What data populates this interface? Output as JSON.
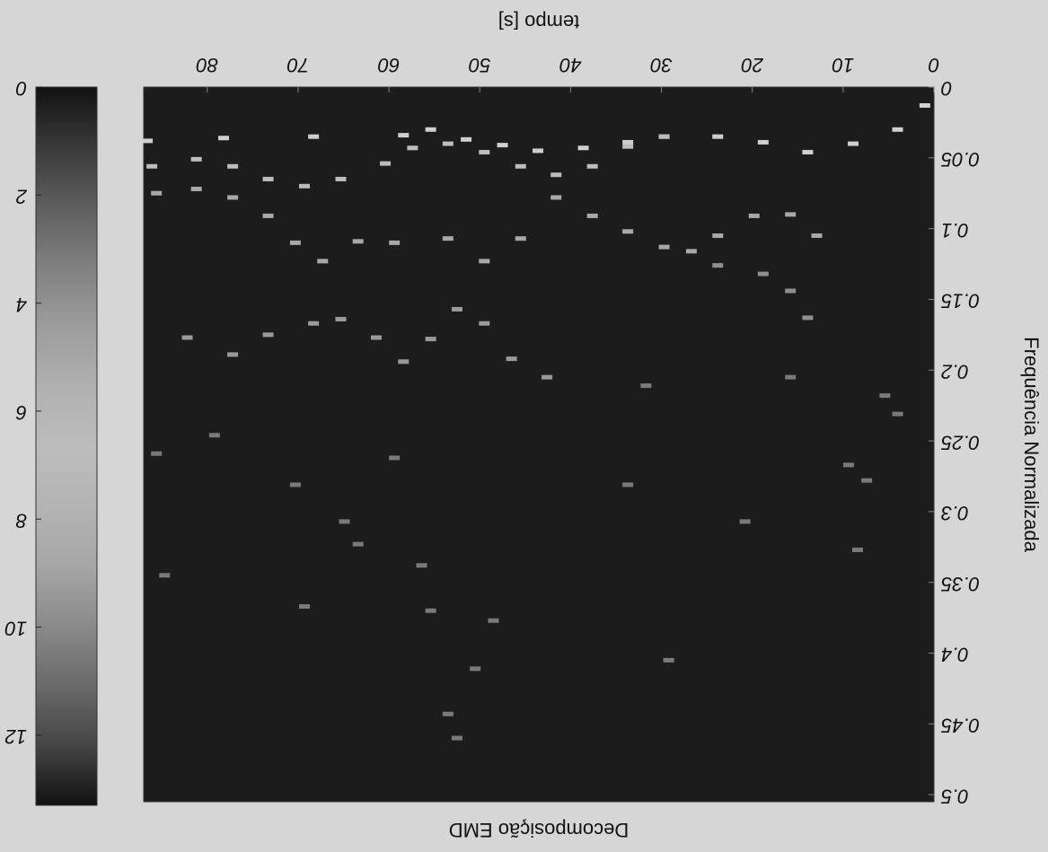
{
  "chart_data": {
    "type": "scatter",
    "title": "Decomposição EMD",
    "x_label": "tempo [s]",
    "y_label": "Frequência Normalizada",
    "xlim": [
      0,
      87
    ],
    "xticks": [
      0,
      10,
      20,
      30,
      40,
      50,
      60,
      70,
      80
    ],
    "ylim": [
      0,
      0.505
    ],
    "yticks": [
      0,
      0.05,
      0.1,
      0.15,
      0.2,
      0.25,
      0.3,
      0.35,
      0.4,
      0.45,
      0.5
    ],
    "rotated_180": true,
    "background": "#1c1c1c",
    "series": [
      {
        "color": "#cfcfcf",
        "x": [
          86.6,
          78.2,
          68.3,
          58.4,
          55.4,
          51.5,
          47.5,
          43.6,
          38.6,
          33.7,
          29.7,
          23.8,
          18.8,
          13.9,
          8.9,
          4.0,
          1.0
        ],
        "y": [
          0.038,
          0.036,
          0.035,
          0.034,
          0.03,
          0.037,
          0.041,
          0.045,
          0.043,
          0.039,
          0.035,
          0.035,
          0.039,
          0.046,
          0.04,
          0.03,
          0.013
        ]
      },
      {
        "color": "#bdbdbd",
        "x": [
          86.1,
          81.2,
          77.2,
          73.3,
          69.3,
          65.3,
          60.4,
          57.4,
          53.5,
          49.5,
          45.5,
          41.6,
          37.6,
          33.7,
          29.7
        ],
        "y": [
          0.056,
          0.051,
          0.056,
          0.065,
          0.07,
          0.065,
          0.054,
          0.043,
          0.04,
          0.046,
          0.056,
          0.062,
          0.056,
          0.042,
          0.035
        ]
      },
      {
        "color": "#a8a8a8",
        "x": [
          85.6,
          81.2,
          77.2,
          73.3,
          70.3,
          67.3,
          63.4,
          59.4,
          53.5,
          49.5,
          45.5,
          41.6,
          37.6,
          33.7,
          29.7,
          26.7,
          23.8,
          19.8,
          15.8,
          12.9
        ],
        "y": [
          0.075,
          0.072,
          0.078,
          0.091,
          0.11,
          0.123,
          0.109,
          0.11,
          0.107,
          0.123,
          0.107,
          0.078,
          0.091,
          0.102,
          0.113,
          0.116,
          0.105,
          0.091,
          0.09,
          0.105
        ]
      },
      {
        "color": "#8f8f8f",
        "x": [
          23.8,
          18.8,
          15.8,
          13.9
        ],
        "y": [
          0.126,
          0.132,
          0.144,
          0.163
        ]
      },
      {
        "color": "#9a9a9a",
        "x": [
          82.2,
          77.2,
          73.3,
          68.3,
          65.3,
          61.4,
          58.4,
          55.4,
          52.5,
          49.5,
          46.5,
          42.6
        ],
        "y": [
          0.177,
          0.189,
          0.175,
          0.167,
          0.164,
          0.177,
          0.194,
          0.178,
          0.157,
          0.167,
          0.192,
          0.205
        ]
      },
      {
        "color": "#7a7a7a",
        "x": [
          84.7,
          85.6,
          69.3,
          64.9,
          63.4,
          59.4,
          56.4,
          55.4,
          53.5,
          52.5,
          50.5,
          48.5,
          33.7,
          29.2,
          9.4,
          7.4,
          8.4,
          5.4,
          4.0,
          15.8,
          31.7,
          20.8,
          79.2,
          70.3
        ],
        "y": [
          0.345,
          0.259,
          0.367,
          0.307,
          0.323,
          0.262,
          0.338,
          0.37,
          0.443,
          0.46,
          0.411,
          0.377,
          0.281,
          0.405,
          0.267,
          0.278,
          0.327,
          0.218,
          0.231,
          0.205,
          0.211,
          0.307,
          0.246,
          0.281
        ]
      }
    ],
    "colorbar": {
      "lim": [
        0,
        13.3
      ],
      "ticks": [
        0,
        2,
        4,
        6,
        8,
        10,
        12
      ],
      "colors": [
        "#111111",
        "#3a3a3a",
        "#5e5e5e",
        "#808080",
        "#9c9c9c",
        "#b0b0b0",
        "#bcbcbc",
        "#b4b4b4",
        "#a6a6a6",
        "#8a8a8a",
        "#6a6a6a",
        "#454545",
        "#111111"
      ]
    }
  }
}
